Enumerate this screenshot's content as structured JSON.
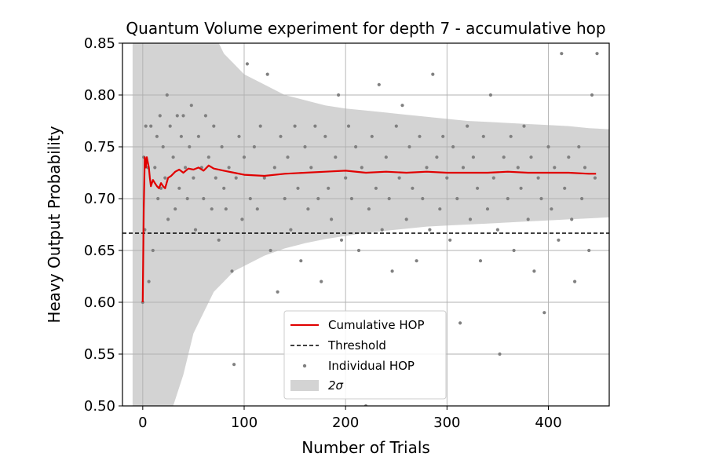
{
  "chart_data": {
    "type": "scatter",
    "title": "Quantum Volume experiment for depth 7 - accumulative hop",
    "xlabel": "Number of Trials",
    "ylabel": "Heavy Output Probability",
    "xlim": [
      -20,
      460
    ],
    "ylim": [
      0.5,
      0.85
    ],
    "x_ticks": [
      0,
      100,
      200,
      300,
      400
    ],
    "y_ticks": [
      0.5,
      0.55,
      0.6,
      0.65,
      0.7,
      0.75,
      0.8,
      0.85
    ],
    "x_tick_labels": [
      "0",
      "100",
      "200",
      "300",
      "400"
    ],
    "y_tick_labels": [
      "0.50",
      "0.55",
      "0.60",
      "0.65",
      "0.70",
      "0.75",
      "0.80",
      "0.85"
    ],
    "grid": true,
    "legend_position": "lower-center",
    "threshold": 0.6667,
    "colors": {
      "cumulative": "#e00000",
      "threshold": "#000000",
      "individual": "#808080",
      "band": "#d3d3d3"
    },
    "series": [
      {
        "name": "Cumulative HOP",
        "kind": "line",
        "x": [
          0,
          1,
          2,
          3,
          4,
          5,
          6,
          7,
          8,
          10,
          12,
          14,
          16,
          18,
          20,
          22,
          25,
          28,
          32,
          36,
          40,
          45,
          50,
          55,
          60,
          65,
          70,
          80,
          90,
          100,
          120,
          140,
          160,
          180,
          200,
          220,
          240,
          260,
          280,
          300,
          320,
          340,
          360,
          380,
          400,
          420,
          440,
          447
        ],
        "y": [
          0.6,
          0.69,
          0.74,
          0.73,
          0.74,
          0.735,
          0.73,
          0.72,
          0.712,
          0.718,
          0.715,
          0.712,
          0.71,
          0.715,
          0.712,
          0.71,
          0.72,
          0.722,
          0.726,
          0.728,
          0.725,
          0.729,
          0.728,
          0.73,
          0.727,
          0.732,
          0.729,
          0.727,
          0.725,
          0.723,
          0.722,
          0.724,
          0.725,
          0.726,
          0.727,
          0.725,
          0.726,
          0.725,
          0.726,
          0.725,
          0.725,
          0.725,
          0.726,
          0.725,
          0.725,
          0.725,
          0.724,
          0.724
        ]
      },
      {
        "name": "Threshold",
        "kind": "hline",
        "y": 0.6667
      },
      {
        "name": "Individual HOP",
        "kind": "scatter",
        "points": [
          [
            0,
            0.6
          ],
          [
            1,
            0.74
          ],
          [
            2,
            0.67
          ],
          [
            3,
            0.77
          ],
          [
            5,
            0.73
          ],
          [
            6,
            0.62
          ],
          [
            8,
            0.77
          ],
          [
            10,
            0.65
          ],
          [
            12,
            0.73
          ],
          [
            14,
            0.76
          ],
          [
            15,
            0.7
          ],
          [
            17,
            0.78
          ],
          [
            18,
            0.71
          ],
          [
            20,
            0.75
          ],
          [
            22,
            0.72
          ],
          [
            24,
            0.8
          ],
          [
            25,
            0.68
          ],
          [
            27,
            0.77
          ],
          [
            30,
            0.74
          ],
          [
            32,
            0.69
          ],
          [
            34,
            0.78
          ],
          [
            36,
            0.71
          ],
          [
            38,
            0.76
          ],
          [
            40,
            0.78
          ],
          [
            42,
            0.73
          ],
          [
            44,
            0.7
          ],
          [
            46,
            0.75
          ],
          [
            48,
            0.79
          ],
          [
            50,
            0.72
          ],
          [
            52,
            0.67
          ],
          [
            55,
            0.76
          ],
          [
            58,
            0.73
          ],
          [
            60,
            0.7
          ],
          [
            62,
            0.78
          ],
          [
            65,
            0.74
          ],
          [
            68,
            0.69
          ],
          [
            70,
            0.77
          ],
          [
            72,
            0.72
          ],
          [
            75,
            0.66
          ],
          [
            78,
            0.75
          ],
          [
            80,
            0.71
          ],
          [
            82,
            0.69
          ],
          [
            85,
            0.73
          ],
          [
            88,
            0.63
          ],
          [
            90,
            0.54
          ],
          [
            92,
            0.72
          ],
          [
            95,
            0.76
          ],
          [
            98,
            0.68
          ],
          [
            100,
            0.74
          ],
          [
            103,
            0.83
          ],
          [
            106,
            0.7
          ],
          [
            110,
            0.75
          ],
          [
            113,
            0.69
          ],
          [
            116,
            0.77
          ],
          [
            120,
            0.72
          ],
          [
            123,
            0.82
          ],
          [
            126,
            0.65
          ],
          [
            130,
            0.73
          ],
          [
            133,
            0.61
          ],
          [
            136,
            0.76
          ],
          [
            140,
            0.7
          ],
          [
            143,
            0.74
          ],
          [
            146,
            0.67
          ],
          [
            150,
            0.77
          ],
          [
            153,
            0.71
          ],
          [
            156,
            0.64
          ],
          [
            160,
            0.75
          ],
          [
            163,
            0.69
          ],
          [
            166,
            0.73
          ],
          [
            170,
            0.77
          ],
          [
            173,
            0.7
          ],
          [
            176,
            0.62
          ],
          [
            180,
            0.76
          ],
          [
            183,
            0.71
          ],
          [
            186,
            0.68
          ],
          [
            190,
            0.74
          ],
          [
            193,
            0.8
          ],
          [
            196,
            0.66
          ],
          [
            200,
            0.72
          ],
          [
            203,
            0.77
          ],
          [
            206,
            0.7
          ],
          [
            210,
            0.75
          ],
          [
            213,
            0.65
          ],
          [
            216,
            0.73
          ],
          [
            220,
            0.5
          ],
          [
            223,
            0.69
          ],
          [
            226,
            0.76
          ],
          [
            230,
            0.71
          ],
          [
            233,
            0.81
          ],
          [
            236,
            0.67
          ],
          [
            240,
            0.74
          ],
          [
            243,
            0.7
          ],
          [
            246,
            0.63
          ],
          [
            250,
            0.77
          ],
          [
            253,
            0.72
          ],
          [
            256,
            0.79
          ],
          [
            260,
            0.68
          ],
          [
            263,
            0.75
          ],
          [
            266,
            0.71
          ],
          [
            270,
            0.64
          ],
          [
            273,
            0.76
          ],
          [
            276,
            0.7
          ],
          [
            280,
            0.73
          ],
          [
            283,
            0.67
          ],
          [
            286,
            0.82
          ],
          [
            290,
            0.74
          ],
          [
            293,
            0.69
          ],
          [
            296,
            0.76
          ],
          [
            300,
            0.72
          ],
          [
            303,
            0.66
          ],
          [
            306,
            0.75
          ],
          [
            310,
            0.7
          ],
          [
            313,
            0.58
          ],
          [
            316,
            0.73
          ],
          [
            320,
            0.77
          ],
          [
            323,
            0.68
          ],
          [
            326,
            0.74
          ],
          [
            330,
            0.71
          ],
          [
            333,
            0.64
          ],
          [
            336,
            0.76
          ],
          [
            340,
            0.69
          ],
          [
            343,
            0.8
          ],
          [
            346,
            0.72
          ],
          [
            350,
            0.67
          ],
          [
            352,
            0.55
          ],
          [
            356,
            0.74
          ],
          [
            360,
            0.7
          ],
          [
            363,
            0.76
          ],
          [
            366,
            0.65
          ],
          [
            370,
            0.73
          ],
          [
            373,
            0.71
          ],
          [
            376,
            0.77
          ],
          [
            380,
            0.68
          ],
          [
            383,
            0.74
          ],
          [
            386,
            0.63
          ],
          [
            390,
            0.72
          ],
          [
            393,
            0.7
          ],
          [
            396,
            0.59
          ],
          [
            400,
            0.75
          ],
          [
            403,
            0.69
          ],
          [
            406,
            0.73
          ],
          [
            410,
            0.66
          ],
          [
            413,
            0.84
          ],
          [
            416,
            0.71
          ],
          [
            420,
            0.74
          ],
          [
            423,
            0.68
          ],
          [
            426,
            0.62
          ],
          [
            430,
            0.75
          ],
          [
            433,
            0.7
          ],
          [
            436,
            0.73
          ],
          [
            440,
            0.65
          ],
          [
            443,
            0.8
          ],
          [
            446,
            0.72
          ],
          [
            448,
            0.84
          ]
        ]
      },
      {
        "name": "2σ",
        "kind": "band",
        "x": [
          -10,
          0,
          5,
          10,
          20,
          30,
          40,
          50,
          60,
          70,
          80,
          90,
          100,
          120,
          140,
          160,
          180,
          200,
          220,
          240,
          260,
          280,
          300,
          320,
          340,
          360,
          380,
          400,
          420,
          440,
          460
        ],
        "lower": [
          0.44,
          0.44,
          0.46,
          0.48,
          0.5,
          0.5,
          0.53,
          0.57,
          0.59,
          0.61,
          0.62,
          0.63,
          0.635,
          0.645,
          0.652,
          0.657,
          0.661,
          0.664,
          0.667,
          0.669,
          0.671,
          0.673,
          0.674,
          0.675,
          0.676,
          0.677,
          0.678,
          0.679,
          0.68,
          0.681,
          0.682
        ],
        "upper": [
          0.86,
          0.86,
          0.86,
          0.86,
          0.86,
          0.86,
          0.86,
          0.86,
          0.86,
          0.86,
          0.84,
          0.83,
          0.82,
          0.81,
          0.8,
          0.795,
          0.79,
          0.787,
          0.785,
          0.783,
          0.781,
          0.779,
          0.777,
          0.775,
          0.774,
          0.773,
          0.772,
          0.771,
          0.77,
          0.768,
          0.767
        ]
      }
    ],
    "legend": {
      "entries": [
        "Cumulative HOP",
        "Threshold",
        "Individual HOP",
        "2σ"
      ]
    }
  }
}
